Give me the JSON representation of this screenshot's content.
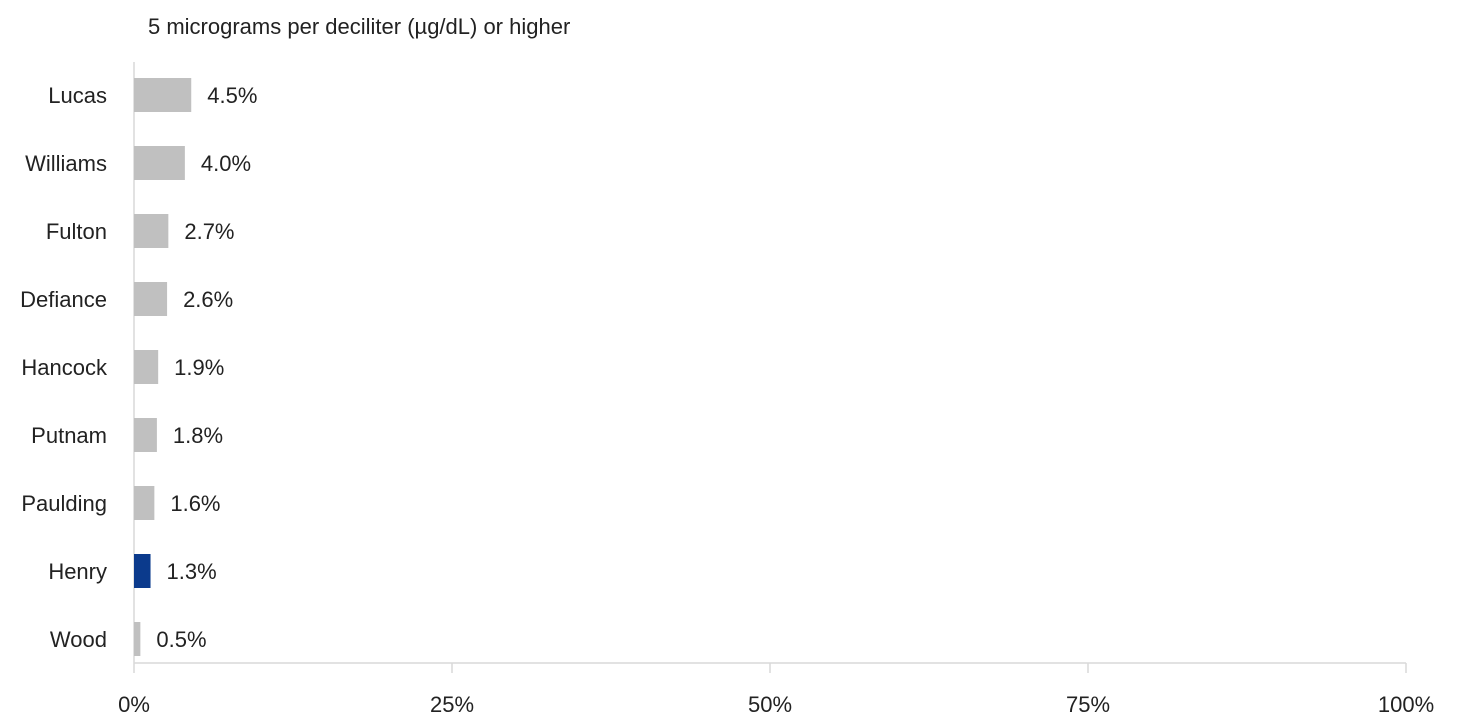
{
  "chart_data": {
    "type": "bar",
    "orientation": "horizontal",
    "title": "5 micrograms per deciliter (µg/dL) or higher",
    "xlabel": "",
    "ylabel": "",
    "categories": [
      "Lucas",
      "Williams",
      "Fulton",
      "Defiance",
      "Hancock",
      "Putnam",
      "Paulding",
      "Henry",
      "Wood"
    ],
    "values": [
      4.5,
      4.0,
      2.7,
      2.6,
      1.9,
      1.8,
      1.6,
      1.3,
      0.5
    ],
    "data_labels": [
      "4.5%",
      "4.0%",
      "2.7%",
      "2.6%",
      "1.9%",
      "1.8%",
      "1.6%",
      "1.3%",
      "0.5%"
    ],
    "highlight": "Henry",
    "xlim": [
      0,
      100
    ],
    "x_ticks": [
      0,
      25,
      50,
      75,
      100
    ],
    "x_tick_labels": [
      "0%",
      "25%",
      "50%",
      "75%",
      "100%"
    ],
    "grid": false,
    "legend": "none",
    "colors": {
      "default_bar": "#c0c0c0",
      "highlight_bar": "#0b3a8c",
      "axis": "#d9d9d9",
      "text": "#222222"
    }
  }
}
